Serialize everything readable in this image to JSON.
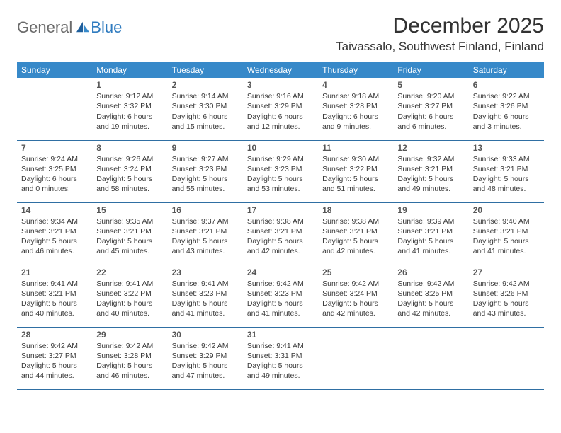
{
  "logo": {
    "general": "General",
    "blue": "Blue"
  },
  "title": "December 2025",
  "location": "Taivassalo, Southwest Finland, Finland",
  "colors": {
    "header_bg": "#3789c9",
    "header_fg": "#ffffff",
    "border": "#2f6fa3",
    "text": "#3a3a3a",
    "logo_gray": "#6b6b6b",
    "logo_blue": "#2f7bbf"
  },
  "weekdays": [
    "Sunday",
    "Monday",
    "Tuesday",
    "Wednesday",
    "Thursday",
    "Friday",
    "Saturday"
  ],
  "weeks": [
    [
      null,
      {
        "n": "1",
        "sr": "9:12 AM",
        "ss": "3:32 PM",
        "dl": "6 hours and 19 minutes."
      },
      {
        "n": "2",
        "sr": "9:14 AM",
        "ss": "3:30 PM",
        "dl": "6 hours and 15 minutes."
      },
      {
        "n": "3",
        "sr": "9:16 AM",
        "ss": "3:29 PM",
        "dl": "6 hours and 12 minutes."
      },
      {
        "n": "4",
        "sr": "9:18 AM",
        "ss": "3:28 PM",
        "dl": "6 hours and 9 minutes."
      },
      {
        "n": "5",
        "sr": "9:20 AM",
        "ss": "3:27 PM",
        "dl": "6 hours and 6 minutes."
      },
      {
        "n": "6",
        "sr": "9:22 AM",
        "ss": "3:26 PM",
        "dl": "6 hours and 3 minutes."
      }
    ],
    [
      {
        "n": "7",
        "sr": "9:24 AM",
        "ss": "3:25 PM",
        "dl": "6 hours and 0 minutes."
      },
      {
        "n": "8",
        "sr": "9:26 AM",
        "ss": "3:24 PM",
        "dl": "5 hours and 58 minutes."
      },
      {
        "n": "9",
        "sr": "9:27 AM",
        "ss": "3:23 PM",
        "dl": "5 hours and 55 minutes."
      },
      {
        "n": "10",
        "sr": "9:29 AM",
        "ss": "3:23 PM",
        "dl": "5 hours and 53 minutes."
      },
      {
        "n": "11",
        "sr": "9:30 AM",
        "ss": "3:22 PM",
        "dl": "5 hours and 51 minutes."
      },
      {
        "n": "12",
        "sr": "9:32 AM",
        "ss": "3:21 PM",
        "dl": "5 hours and 49 minutes."
      },
      {
        "n": "13",
        "sr": "9:33 AM",
        "ss": "3:21 PM",
        "dl": "5 hours and 48 minutes."
      }
    ],
    [
      {
        "n": "14",
        "sr": "9:34 AM",
        "ss": "3:21 PM",
        "dl": "5 hours and 46 minutes."
      },
      {
        "n": "15",
        "sr": "9:35 AM",
        "ss": "3:21 PM",
        "dl": "5 hours and 45 minutes."
      },
      {
        "n": "16",
        "sr": "9:37 AM",
        "ss": "3:21 PM",
        "dl": "5 hours and 43 minutes."
      },
      {
        "n": "17",
        "sr": "9:38 AM",
        "ss": "3:21 PM",
        "dl": "5 hours and 42 minutes."
      },
      {
        "n": "18",
        "sr": "9:38 AM",
        "ss": "3:21 PM",
        "dl": "5 hours and 42 minutes."
      },
      {
        "n": "19",
        "sr": "9:39 AM",
        "ss": "3:21 PM",
        "dl": "5 hours and 41 minutes."
      },
      {
        "n": "20",
        "sr": "9:40 AM",
        "ss": "3:21 PM",
        "dl": "5 hours and 41 minutes."
      }
    ],
    [
      {
        "n": "21",
        "sr": "9:41 AM",
        "ss": "3:21 PM",
        "dl": "5 hours and 40 minutes."
      },
      {
        "n": "22",
        "sr": "9:41 AM",
        "ss": "3:22 PM",
        "dl": "5 hours and 40 minutes."
      },
      {
        "n": "23",
        "sr": "9:41 AM",
        "ss": "3:23 PM",
        "dl": "5 hours and 41 minutes."
      },
      {
        "n": "24",
        "sr": "9:42 AM",
        "ss": "3:23 PM",
        "dl": "5 hours and 41 minutes."
      },
      {
        "n": "25",
        "sr": "9:42 AM",
        "ss": "3:24 PM",
        "dl": "5 hours and 42 minutes."
      },
      {
        "n": "26",
        "sr": "9:42 AM",
        "ss": "3:25 PM",
        "dl": "5 hours and 42 minutes."
      },
      {
        "n": "27",
        "sr": "9:42 AM",
        "ss": "3:26 PM",
        "dl": "5 hours and 43 minutes."
      }
    ],
    [
      {
        "n": "28",
        "sr": "9:42 AM",
        "ss": "3:27 PM",
        "dl": "5 hours and 44 minutes."
      },
      {
        "n": "29",
        "sr": "9:42 AM",
        "ss": "3:28 PM",
        "dl": "5 hours and 46 minutes."
      },
      {
        "n": "30",
        "sr": "9:42 AM",
        "ss": "3:29 PM",
        "dl": "5 hours and 47 minutes."
      },
      {
        "n": "31",
        "sr": "9:41 AM",
        "ss": "3:31 PM",
        "dl": "5 hours and 49 minutes."
      },
      null,
      null,
      null
    ]
  ],
  "labels": {
    "sunrise": "Sunrise: ",
    "sunset": "Sunset: ",
    "daylight": "Daylight: "
  }
}
